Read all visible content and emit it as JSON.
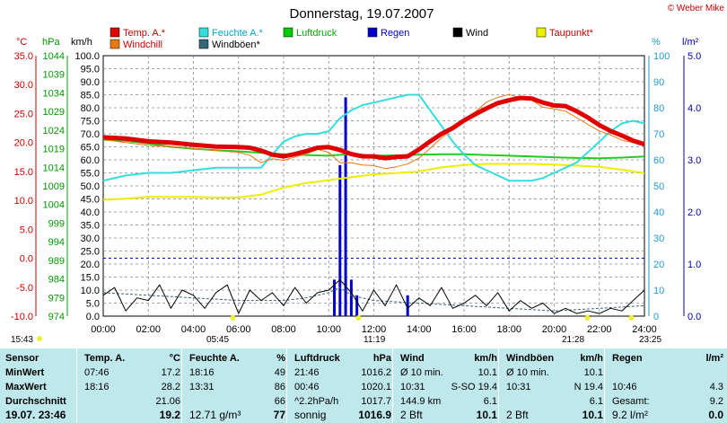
{
  "title": "Donnerstag, 19.07.2007",
  "copyright": "© Weber Mike",
  "legend": [
    {
      "label": "Temp. A.*",
      "color": "#e00000"
    },
    {
      "label": "Feuchte A.*",
      "color": "#33dddd"
    },
    {
      "label": "Luftdruck",
      "color": "#00cc00"
    },
    {
      "label": "Regen",
      "color": "#0000cc"
    },
    {
      "label": "Wind",
      "color": "#000000"
    },
    {
      "label": "Taupunkt*",
      "color": "#eeee00"
    },
    {
      "label": "Windchill",
      "color": "#ee7711"
    },
    {
      "label": "Windböen*",
      "color": "#336677"
    }
  ],
  "axes": {
    "temp_unit": "°C",
    "hpa_unit": "hPa",
    "kmh_unit": "km/h",
    "pct_unit": "%",
    "rain_unit": "l/m²",
    "temp_ticks": [
      "35.0",
      "30.0",
      "25.0",
      "20.0",
      "15.0",
      "10.0",
      "5.0",
      "0.0",
      "-5.0",
      "-10.0"
    ],
    "hpa_ticks": [
      "1044",
      "1039",
      "1034",
      "1029",
      "1024",
      "1019",
      "1014",
      "1009",
      "1004",
      "999",
      "994",
      "989",
      "984",
      "979",
      "974"
    ],
    "kmh_ticks": [
      "100.0",
      "95.0",
      "90.0",
      "85.0",
      "80.0",
      "75.0",
      "70.0",
      "65.0",
      "60.0",
      "55.0",
      "50.0",
      "45.0",
      "40.0",
      "35.0",
      "30.0",
      "25.0",
      "20.0",
      "15.0",
      "10.0",
      "5.0",
      "0.0"
    ],
    "pct_ticks": [
      "100",
      "90",
      "80",
      "70",
      "60",
      "50",
      "40",
      "30",
      "20",
      "10",
      "0"
    ],
    "rain_ticks": [
      "5.0",
      "4.0",
      "3.0",
      "2.0",
      "1.0",
      "0.0"
    ],
    "time_ticks": [
      "00:00",
      "02:00",
      "04:00",
      "06:00",
      "08:00",
      "10:00",
      "12:00",
      "14:00",
      "16:00",
      "18:00",
      "20:00",
      "22:00",
      "24:00"
    ],
    "event_labels": [
      "15:43",
      "05:45",
      "11:19",
      "21:28",
      "23:25"
    ]
  },
  "chart_data": {
    "type": "line",
    "title": "Donnerstag, 19.07.2007",
    "x_unit": "hour",
    "xlim": [
      0,
      24
    ],
    "series": [
      {
        "name": "Temp. A.*",
        "axis": "°C",
        "ylim": [
          -10,
          35
        ],
        "x": [
          0,
          1,
          2,
          3,
          4,
          5,
          6,
          6.5,
          7,
          7.5,
          8,
          8.5,
          9,
          9.5,
          10,
          10.5,
          11,
          11.5,
          12,
          12.5,
          13,
          13.5,
          14,
          14.5,
          15,
          15.5,
          16,
          16.5,
          17,
          17.5,
          18,
          18.5,
          19,
          19.5,
          20,
          20.5,
          21,
          21.5,
          22,
          22.5,
          23,
          23.5,
          24
        ],
        "y": [
          20.9,
          20.7,
          20.2,
          20.0,
          19.6,
          19.3,
          19.2,
          19.1,
          18.6,
          17.9,
          17.6,
          18.0,
          18.5,
          19.1,
          19.2,
          18.7,
          18.0,
          17.6,
          17.6,
          17.3,
          17.5,
          17.6,
          18.8,
          20.2,
          21.5,
          22.5,
          23.8,
          24.9,
          25.9,
          26.8,
          27.3,
          27.7,
          27.6,
          26.9,
          26.4,
          26.3,
          25.4,
          24.3,
          23.0,
          22.0,
          21.2,
          20.3,
          19.7
        ]
      },
      {
        "name": "Feuchte A.*",
        "axis": "%",
        "ylim": [
          0,
          100
        ],
        "x": [
          0,
          1,
          2,
          3,
          4,
          5,
          6,
          7,
          7.5,
          8,
          8.5,
          9,
          9.5,
          10,
          10.5,
          11,
          11.5,
          12,
          12.5,
          13,
          13.5,
          14,
          14.5,
          15,
          15.5,
          16,
          16.5,
          17,
          17.5,
          18,
          18.5,
          19,
          19.5,
          20,
          20.5,
          21,
          21.5,
          22,
          22.5,
          23,
          23.5,
          24
        ],
        "y": [
          52,
          54,
          55,
          55,
          56,
          57,
          57,
          57,
          62,
          67,
          69,
          70,
          70,
          71,
          76,
          79,
          81,
          82,
          83,
          84,
          85,
          85,
          79,
          73,
          67,
          62,
          58,
          56,
          54,
          52,
          52,
          52,
          53,
          55,
          57,
          59,
          63,
          67,
          71,
          74,
          75,
          74
        ]
      },
      {
        "name": "Luftdruck",
        "axis": "hPa",
        "ylim": [
          974,
          1044
        ],
        "x": [
          0,
          1,
          2,
          3,
          4,
          5,
          6,
          7,
          8,
          9,
          10,
          11,
          12,
          13,
          14,
          15,
          16,
          17,
          18,
          19,
          20,
          21,
          22,
          23,
          24
        ],
        "y": [
          1021.4,
          1021.1,
          1020.4,
          1019.5,
          1019.0,
          1018.6,
          1018.3,
          1017.9,
          1017.5,
          1017.3,
          1017.1,
          1017.6,
          1017.1,
          1017.2,
          1017.4,
          1017.5,
          1017.5,
          1017.3,
          1017.1,
          1016.9,
          1016.7,
          1016.5,
          1016.4,
          1016.6,
          1016.9
        ]
      },
      {
        "name": "Taupunkt*",
        "axis": "°C",
        "ylim": [
          -10,
          35
        ],
        "x": [
          0,
          1,
          2,
          3,
          4,
          5,
          6,
          7,
          8,
          9,
          10,
          11,
          12,
          13,
          14,
          15,
          16,
          17,
          18,
          19,
          20,
          21,
          22,
          23,
          24
        ],
        "y": [
          10.1,
          10.3,
          10.6,
          10.6,
          10.6,
          10.5,
          10.5,
          11.0,
          12.2,
          13.0,
          13.5,
          14.0,
          14.5,
          14.7,
          15.0,
          15.7,
          16.1,
          16.3,
          16.3,
          16.3,
          16.2,
          16.0,
          15.8,
          15.3,
          14.7
        ]
      },
      {
        "name": "Windchill",
        "axis": "°C",
        "ylim": [
          -10,
          35
        ],
        "x": [
          0,
          1,
          2,
          3,
          4,
          5,
          6,
          6.5,
          7,
          7.5,
          8,
          8.5,
          9,
          9.5,
          10,
          10.5,
          11,
          11.5,
          12,
          12.5,
          13,
          13.5,
          14,
          14.5,
          15,
          15.5,
          16,
          16.5,
          17,
          17.5,
          18,
          18.5,
          19,
          19.5,
          20,
          20.5,
          21,
          21.5,
          22,
          22.5,
          23,
          23.5,
          24
        ],
        "y": [
          20.5,
          20.0,
          19.5,
          19.3,
          19.0,
          18.6,
          18.3,
          17.8,
          16.5,
          17.2,
          16.9,
          17.5,
          18.0,
          18.8,
          18.3,
          16.5,
          16.5,
          16.1,
          16.0,
          15.5,
          15.8,
          16.3,
          17.3,
          19.0,
          20.8,
          22.3,
          24.0,
          25.3,
          27.0,
          27.8,
          28.3,
          27.7,
          27.3,
          26.1,
          25.8,
          25.4,
          24.3,
          23.1,
          22.0,
          21.3,
          20.4,
          20.0,
          19.5
        ]
      },
      {
        "name": "Wind",
        "axis": "km/h",
        "ylim": [
          0,
          100
        ],
        "x": [
          0,
          0.5,
          1,
          1.5,
          2,
          2.5,
          3,
          3.5,
          4,
          4.5,
          5,
          5.5,
          6,
          6.5,
          7,
          7.5,
          8,
          8.5,
          9,
          9.5,
          10,
          10.5,
          11,
          11.5,
          12,
          12.5,
          13,
          13.5,
          14,
          14.5,
          15,
          15.5,
          16,
          16.5,
          17,
          17.5,
          18,
          18.5,
          19,
          19.5,
          20,
          20.5,
          21,
          21.5,
          22,
          22.5,
          23,
          23.5,
          24
        ],
        "y": [
          8,
          11,
          2,
          7,
          6,
          12,
          3,
          10,
          8,
          3,
          9,
          12,
          1,
          10,
          6,
          9,
          4,
          11,
          5,
          9,
          10,
          14,
          9,
          2,
          10,
          4,
          12,
          3,
          7,
          4,
          11,
          3,
          5,
          8,
          4,
          9,
          2,
          6,
          3,
          5,
          1,
          3,
          1,
          2,
          1,
          3,
          2,
          6,
          10
        ]
      },
      {
        "name": "Windböen*",
        "axis": "km/h",
        "ylim": [
          0,
          100
        ],
        "x": [
          0,
          2,
          4,
          6,
          8,
          9,
          10,
          10.5,
          11,
          12,
          14,
          16,
          18,
          20,
          22,
          24
        ],
        "y": [
          9,
          8,
          7,
          6,
          6,
          7,
          9,
          11,
          8,
          6,
          5,
          4,
          3,
          2,
          3,
          4
        ]
      },
      {
        "name": "Regen",
        "axis": "l/m²",
        "ylim": [
          0,
          5
        ],
        "type": "bar",
        "x": [
          10.25,
          10.5,
          10.75,
          11.0,
          11.25,
          13.5
        ],
        "y": [
          0.7,
          2.9,
          4.2,
          0.7,
          0.4,
          0.4
        ]
      }
    ]
  },
  "stats": {
    "row_labels": [
      "Sensor",
      "MinWert",
      "MaxWert",
      "Durchschnitt",
      "19.07. 23:46"
    ],
    "columns": [
      {
        "header": "Temp. A.",
        "unit": "°C",
        "rows": [
          [
            "07:46",
            "17.2"
          ],
          [
            "18:16",
            "28.2"
          ],
          [
            "",
            "21.06"
          ],
          [
            "",
            "19.2"
          ]
        ]
      },
      {
        "header": "Feuchte A.",
        "unit": "%",
        "rows": [
          [
            "18:16",
            "49"
          ],
          [
            "13:31",
            "86"
          ],
          [
            "",
            "66"
          ],
          [
            "12.71 g/m³",
            "77"
          ]
        ]
      },
      {
        "header": "Luftdruck",
        "unit": "hPa",
        "rows": [
          [
            "21:46",
            "1016.2"
          ],
          [
            "00:46",
            "1020.1"
          ],
          [
            "^2.2hPa/h",
            "1017.7"
          ],
          [
            "sonnig",
            "1016.9"
          ]
        ]
      },
      {
        "header": "Wind",
        "unit": "km/h",
        "rows": [
          [
            "Ø 10 min.",
            "10.1"
          ],
          [
            "10:31",
            "S-SO 19.4"
          ],
          [
            "144.9 km",
            "6.1"
          ],
          [
            "2 Bft",
            "10.1"
          ]
        ]
      },
      {
        "header": "Windböen",
        "unit": "km/h",
        "rows": [
          [
            "Ø 10 min.",
            "10.1"
          ],
          [
            "10:31",
            "N 19.4"
          ],
          [
            "",
            "6.1"
          ],
          [
            "2 Bft",
            "10.1"
          ]
        ]
      },
      {
        "header": "Regen",
        "unit": "l/m²",
        "rows": [
          [
            "",
            ""
          ],
          [
            "10:46",
            "4.3"
          ],
          [
            "Gesamt:",
            "9.2"
          ],
          [
            "9.2 l/m²",
            "0.0"
          ]
        ]
      }
    ]
  }
}
